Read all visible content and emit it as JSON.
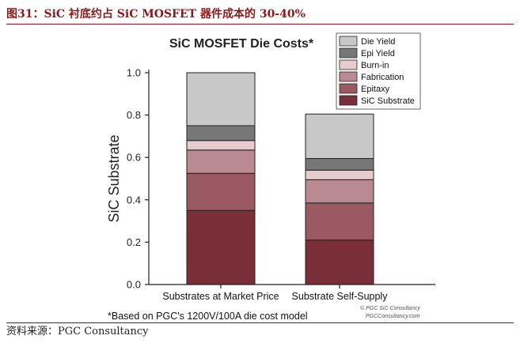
{
  "figure_title": "图31：SiC 衬底约占 SiC MOSFET 器件成本的 30-40%",
  "source": "资料来源：PGC Consultancy",
  "chart_data": {
    "type": "bar",
    "stacked": true,
    "title": "SiC MOSFET Die Costs*",
    "xlabel": "",
    "ylabel": "SiC Substrate",
    "ylim": [
      0,
      1.0
    ],
    "yticks": [
      "0.0",
      "0.2",
      "0.4",
      "0.6",
      "0.8",
      "1.0"
    ],
    "categories": [
      "Substrates at Market Price",
      "Substrate Self-Supply"
    ],
    "series": [
      {
        "name": "SiC Substrate",
        "color": "#7a2f38",
        "values": [
          0.35,
          0.21
        ]
      },
      {
        "name": "Epitaxy",
        "color": "#9a5a63",
        "values": [
          0.175,
          0.175
        ]
      },
      {
        "name": "Fabrication",
        "color": "#b98a91",
        "values": [
          0.11,
          0.11
        ]
      },
      {
        "name": "Burn-in",
        "color": "#e6ccce",
        "values": [
          0.045,
          0.045
        ]
      },
      {
        "name": "Epi Yield",
        "color": "#777777",
        "values": [
          0.07,
          0.055
        ]
      },
      {
        "name": "Die Yield",
        "color": "#c8c8c8",
        "values": [
          0.25,
          0.21
        ]
      }
    ],
    "legend_order": [
      "Die Yield",
      "Epi Yield",
      "Burn-in",
      "Fabrication",
      "Epitaxy",
      "SiC Substrate"
    ],
    "legend_position": "top-right",
    "footnote": "*Based on PGC's 1200V/100A die cost model",
    "watermark": [
      "© PGC SiC Consultancy",
      "PGCConsultancy.com"
    ]
  }
}
